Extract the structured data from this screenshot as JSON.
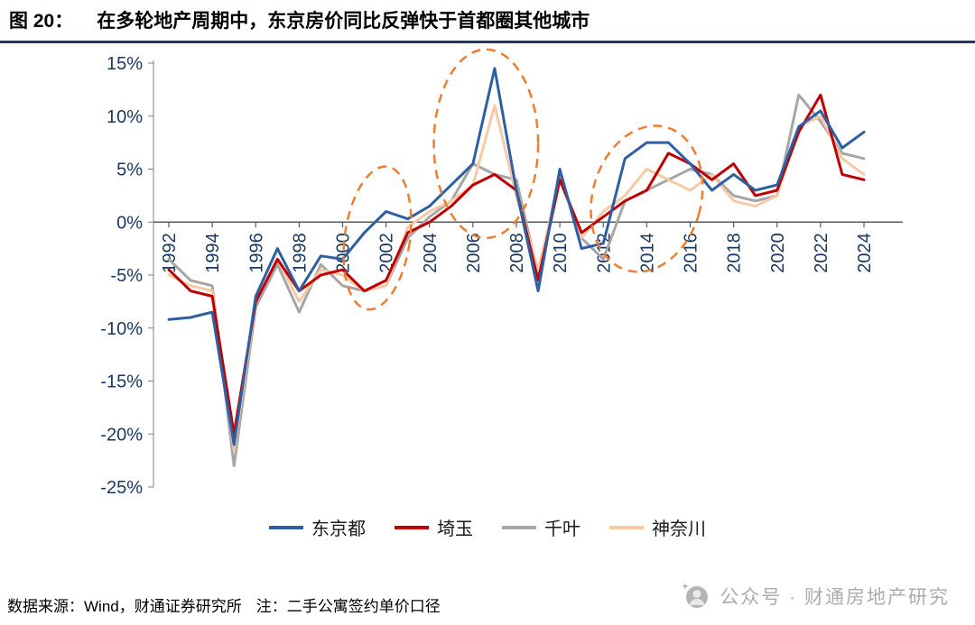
{
  "header": {
    "figure_label": "图 20：",
    "title": "在多轮地产周期中，东京房价同比反弹快于首都圈其他城市"
  },
  "footer": {
    "source": "数据来源：Wind，财通证券研究所",
    "note": "注：二手公寓签约单价口径",
    "watermark": "公众号 · 财通房地产研究"
  },
  "theme": {
    "title_rule_color": "#1F3864",
    "axis_label_color": "#17375E",
    "axis_line_color": "#595959",
    "annotation_color": "#ED7D31",
    "watermark_color": "#ACACAC"
  },
  "chart_data": {
    "type": "line",
    "title": "在多轮地产周期中，东京房价同比反弹快于首都圈其他城市",
    "xlabel": "",
    "ylabel": "",
    "grid": false,
    "legend_position": "bottom",
    "ylim": [
      -25,
      15
    ],
    "y_ticks": [
      15,
      10,
      5,
      0,
      -5,
      -10,
      -15,
      -20,
      -25
    ],
    "y_tick_labels": [
      "15%",
      "10%",
      "5%",
      "0%",
      "-5%",
      "-10%",
      "-15%",
      "-20%",
      "-25%"
    ],
    "x": [
      1992,
      1993,
      1994,
      1995,
      1996,
      1997,
      1998,
      1999,
      2000,
      2001,
      2002,
      2003,
      2004,
      2005,
      2006,
      2007,
      2008,
      2009,
      2010,
      2011,
      2012,
      2013,
      2014,
      2015,
      2016,
      2017,
      2018,
      2019,
      2020,
      2021,
      2022,
      2023,
      2024
    ],
    "x_tick_labels": [
      "1992",
      "1994",
      "1996",
      "1998",
      "2000",
      "2002",
      "2004",
      "2006",
      "2008",
      "2010",
      "2012",
      "2014",
      "2016",
      "2018",
      "2020",
      "2022",
      "2024"
    ],
    "series": [
      {
        "key": "tokyo",
        "name": "东京都",
        "color": "#2E5FA3",
        "values": [
          -9.2,
          -9.0,
          -8.5,
          -21,
          -7,
          -2.5,
          -6.5,
          -3.2,
          -3.5,
          -1,
          1,
          0.3,
          1.5,
          3.5,
          5.5,
          14.5,
          3,
          -6.5,
          5,
          -2.5,
          -2,
          6,
          7.5,
          7.5,
          5.5,
          3,
          4.5,
          3,
          3.5,
          9,
          10.5,
          7,
          8.5
        ]
      },
      {
        "key": "saitama",
        "name": "埼玉",
        "color": "#C00000",
        "values": [
          -4.5,
          -6.5,
          -7,
          -20,
          -7.5,
          -3.5,
          -6.5,
          -5,
          -4.5,
          -6.5,
          -5.5,
          -1,
          0,
          1.5,
          3.5,
          4.5,
          3,
          -5.5,
          4,
          -1,
          0.5,
          2,
          3,
          6.5,
          5.5,
          4,
          5.5,
          2.5,
          3,
          8.5,
          12,
          4.5,
          4
        ]
      },
      {
        "key": "chiba",
        "name": "千叶",
        "color": "#A6A6A6",
        "values": [
          -3.5,
          -5.5,
          -6,
          -23,
          -8,
          -4,
          -8.5,
          -4,
          -6,
          -6.5,
          -6,
          -1.5,
          0.5,
          2,
          5.5,
          4.5,
          4,
          -5,
          4.5,
          -1.5,
          -3.5,
          2,
          3,
          4,
          5,
          4.5,
          2.5,
          2,
          2.5,
          12,
          9.5,
          6.5,
          6
        ]
      },
      {
        "key": "kanagawa",
        "name": "神奈川",
        "color": "#F7C9A4",
        "values": [
          -5,
          -6,
          -6.5,
          -21.5,
          -7.5,
          -3.5,
          -7.5,
          -4.5,
          -5,
          -6.5,
          -6,
          -0.5,
          1,
          2,
          3.5,
          11,
          2.5,
          -4.5,
          4,
          -1.5,
          1,
          2.5,
          5,
          4,
          3,
          4.5,
          2,
          1.5,
          2.5,
          9,
          10,
          6,
          4.5
        ]
      }
    ],
    "annotations": [
      {
        "type": "ellipse",
        "style": "dashed",
        "color": "#ED7D31",
        "center_year": 2001.6,
        "center_value": -1.5,
        "rx_years": 1.5,
        "ry_values": 6.8,
        "rotate_deg": 8
      },
      {
        "type": "ellipse",
        "style": "dashed",
        "color": "#ED7D31",
        "center_year": 2006.6,
        "center_value": 7.4,
        "rx_years": 2.4,
        "ry_values": 8.9,
        "rotate_deg": 0
      },
      {
        "type": "ellipse",
        "style": "dashed",
        "color": "#ED7D31",
        "center_year": 2014.0,
        "center_value": 2.2,
        "rx_years": 2.5,
        "ry_values": 7.0,
        "rotate_deg": 15
      }
    ]
  }
}
